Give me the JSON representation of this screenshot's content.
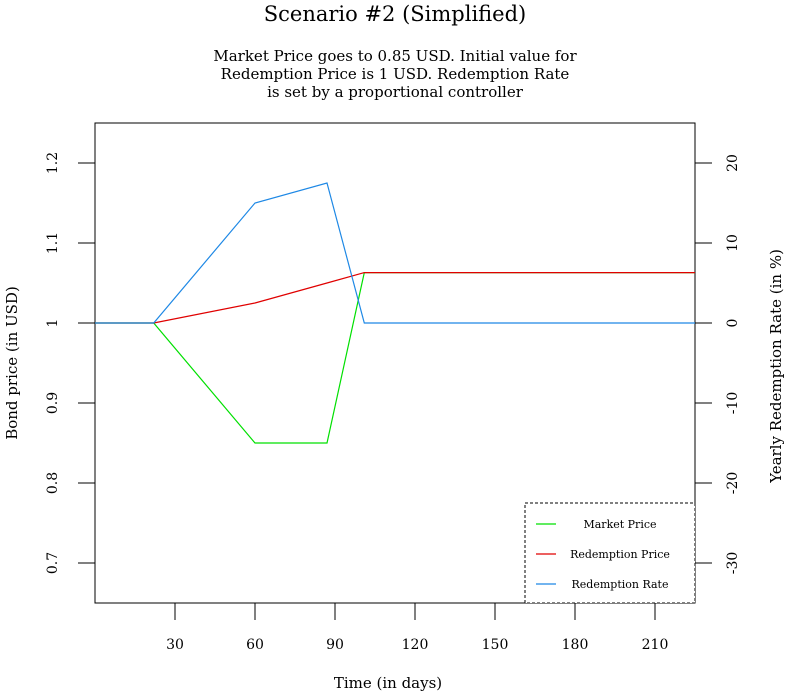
{
  "chart_data": {
    "type": "line",
    "title": "Scenario #2 (Simplified)",
    "subtitle": [
      "Market Price goes to 0.85 USD. Initial value for",
      "Redemption Price is 1 USD. Redemption Rate",
      "is set by a proportional controller"
    ],
    "xlabel": "Time (in days)",
    "ylabel_left": "Bond price (in USD)",
    "ylabel_right": "Yearly Redemption Rate (in %)",
    "xlim": [
      0,
      225
    ],
    "ylim_left": [
      0.65,
      1.25
    ],
    "ylim_right": [
      -35,
      25
    ],
    "x_ticks": [
      30,
      60,
      90,
      120,
      150,
      180,
      210
    ],
    "x_tick_labels": [
      "30",
      "60",
      "90",
      "120",
      "150",
      "180",
      "210"
    ],
    "y_left_ticks": [
      0.7,
      0.8,
      0.9,
      1.0,
      1.1,
      1.2
    ],
    "y_left_tick_labels": [
      "0.7",
      "0.8",
      "0.9",
      "1",
      "1.1",
      "1.2"
    ],
    "y_right_ticks": [
      -30,
      -20,
      -10,
      0,
      10,
      20
    ],
    "y_right_tick_labels": [
      "-30",
      "-20",
      "-10",
      "0",
      "10",
      "20"
    ],
    "legend_position": "bottom-right",
    "series": [
      {
        "name": "Market Price",
        "axis": "left",
        "color": "#00e000",
        "x": [
          0,
          22,
          60,
          87,
          101,
          225
        ],
        "y": [
          1.0,
          1.0,
          0.85,
          0.85,
          1.063,
          1.063
        ]
      },
      {
        "name": "Redemption Price",
        "axis": "left",
        "color": "#e00000",
        "x": [
          0,
          22,
          60,
          87,
          101,
          225
        ],
        "y": [
          1.0,
          1.0,
          1.025,
          1.05,
          1.063,
          1.063
        ]
      },
      {
        "name": "Redemption Rate",
        "axis": "right",
        "color": "#1e88e5",
        "x": [
          0,
          22,
          60,
          87,
          101,
          225
        ],
        "y": [
          0,
          0,
          15,
          17.5,
          0,
          0
        ]
      }
    ]
  }
}
